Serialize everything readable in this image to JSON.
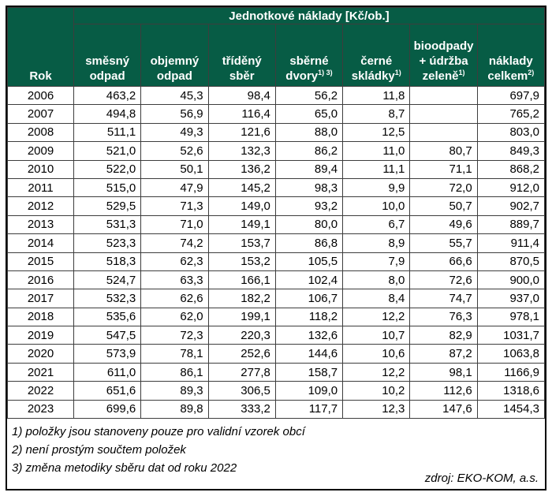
{
  "colors": {
    "header_bg": "#075C45",
    "header_text": "#FFFFFF",
    "grid_border": "#3d3d3d",
    "outer_border": "#000000"
  },
  "table": {
    "title": "Jednotkové náklady [Kč/ob.]",
    "row_header": "Rok",
    "columns": [
      {
        "lines": [
          "směsný",
          "odpad"
        ],
        "sup": ""
      },
      {
        "lines": [
          "objemný",
          "odpad"
        ],
        "sup": ""
      },
      {
        "lines": [
          "tříděný",
          "sběr"
        ],
        "sup": ""
      },
      {
        "lines": [
          "sběrné",
          "dvory"
        ],
        "sup": "1) 3)"
      },
      {
        "lines": [
          "černé",
          "skládky"
        ],
        "sup": "1)"
      },
      {
        "lines": [
          "bioodpady",
          "+ údržba",
          "zeleně"
        ],
        "sup": "1)"
      },
      {
        "lines": [
          "náklady",
          "celkem"
        ],
        "sup": "2)"
      }
    ],
    "footnotes": [
      "1) položky jsou stanoveny pouze pro validní vzorek obcí",
      "2) není prostým součtem položek",
      "3) změna metodiky sběru dat od roku 2022"
    ],
    "source": "zdroj: EKO-KOM, a.s."
  },
  "chart_data": {
    "type": "table",
    "title": "Jednotkové náklady [Kč/ob.]",
    "columns": [
      "Rok",
      "směsný odpad",
      "objemný odpad",
      "tříděný sběr",
      "sběrné dvory 1) 3)",
      "černé skládky 1)",
      "bioodpady + údržba zeleně 1)",
      "náklady celkem 2)"
    ],
    "rows": [
      [
        "2006",
        "463,2",
        "45,3",
        "98,4",
        "56,2",
        "11,8",
        "",
        "697,9"
      ],
      [
        "2007",
        "494,8",
        "56,9",
        "116,4",
        "65,0",
        "8,7",
        "",
        "765,2"
      ],
      [
        "2008",
        "511,1",
        "49,3",
        "121,6",
        "88,0",
        "12,5",
        "",
        "803,0"
      ],
      [
        "2009",
        "521,0",
        "52,6",
        "132,3",
        "86,2",
        "11,0",
        "80,7",
        "849,3"
      ],
      [
        "2010",
        "522,0",
        "50,1",
        "136,2",
        "89,4",
        "11,1",
        "71,1",
        "868,2"
      ],
      [
        "2011",
        "515,0",
        "47,9",
        "145,2",
        "98,3",
        "9,9",
        "72,0",
        "912,0"
      ],
      [
        "2012",
        "529,5",
        "71,3",
        "149,0",
        "93,2",
        "10,0",
        "50,7",
        "902,7"
      ],
      [
        "2013",
        "531,3",
        "71,0",
        "149,1",
        "80,0",
        "6,7",
        "49,6",
        "889,7"
      ],
      [
        "2014",
        "523,3",
        "74,2",
        "153,7",
        "86,8",
        "8,9",
        "55,7",
        "911,4"
      ],
      [
        "2015",
        "518,3",
        "62,3",
        "153,2",
        "105,5",
        "7,9",
        "66,6",
        "870,5"
      ],
      [
        "2016",
        "524,7",
        "63,3",
        "166,1",
        "102,4",
        "8,0",
        "72,6",
        "900,0"
      ],
      [
        "2017",
        "532,3",
        "62,6",
        "182,2",
        "106,7",
        "8,4",
        "74,7",
        "937,0"
      ],
      [
        "2018",
        "535,6",
        "62,0",
        "199,1",
        "118,2",
        "12,2",
        "76,3",
        "978,1"
      ],
      [
        "2019",
        "547,5",
        "72,3",
        "220,3",
        "132,6",
        "10,7",
        "82,9",
        "1031,7"
      ],
      [
        "2020",
        "573,9",
        "78,1",
        "252,6",
        "144,6",
        "10,6",
        "87,2",
        "1063,8"
      ],
      [
        "2021",
        "611,0",
        "86,1",
        "277,8",
        "158,7",
        "12,2",
        "98,1",
        "1166,9"
      ],
      [
        "2022",
        "651,6",
        "89,3",
        "306,5",
        "109,0",
        "10,2",
        "112,6",
        "1318,6"
      ],
      [
        "2023",
        "699,6",
        "89,8",
        "333,2",
        "117,7",
        "12,3",
        "147,6",
        "1454,3"
      ]
    ]
  }
}
